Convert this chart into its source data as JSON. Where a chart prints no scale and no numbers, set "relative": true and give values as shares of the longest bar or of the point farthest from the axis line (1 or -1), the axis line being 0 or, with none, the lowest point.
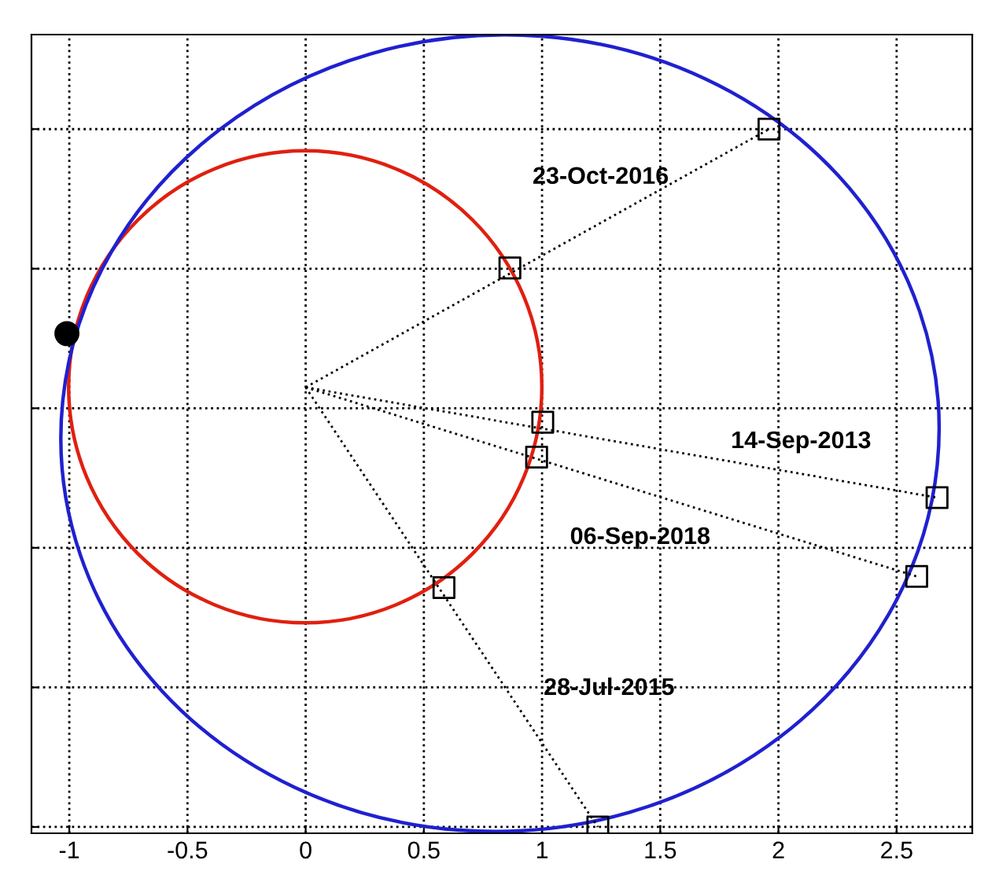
{
  "chart_data": {
    "type": "line",
    "relative": true,
    "tick_labels": "x",
    "grid": true,
    "legend": false,
    "xlim": [
      -1.16,
      2.82
    ],
    "xticks": [
      -1,
      -0.5,
      0,
      0.5,
      1,
      1.5,
      2,
      2.5
    ],
    "series": [
      {
        "color": "#000000",
        "line_style": "dotted",
        "x": [
          0,
          1.96
        ],
        "values": [
          0.63,
          1.0
        ]
      },
      {
        "color": "#000000",
        "line_style": "dotted",
        "x": [
          0,
          2.671
        ],
        "values": [
          0.63,
          0.472
        ]
      },
      {
        "color": "#000000",
        "line_style": "dotted",
        "x": [
          0,
          2.585
        ],
        "values": [
          0.63,
          0.359
        ]
      },
      {
        "color": "#000000",
        "line_style": "dotted",
        "x": [
          0,
          1.236
        ],
        "values": [
          0.63,
          0.0
        ]
      },
      {
        "type": "scatter",
        "color": "#000000",
        "marker": "square",
        "x": [
          0.864,
          1.003,
          0.977,
          0.585,
          1.96,
          2.671,
          2.585,
          1.236
        ],
        "values": [
          0.801,
          0.58,
          0.53,
          0.343,
          1.0,
          0.472,
          0.359,
          0.0
        ]
      },
      {
        "type": "scatter",
        "color": "#000000",
        "marker": "circle",
        "x": [
          -1.01
        ],
        "values": [
          0.707
        ]
      }
    ],
    "annotations": [
      "23-Oct-2016",
      "14-Sep-2013",
      "06-Sep-2018",
      "28-Jul-2015"
    ]
  }
}
